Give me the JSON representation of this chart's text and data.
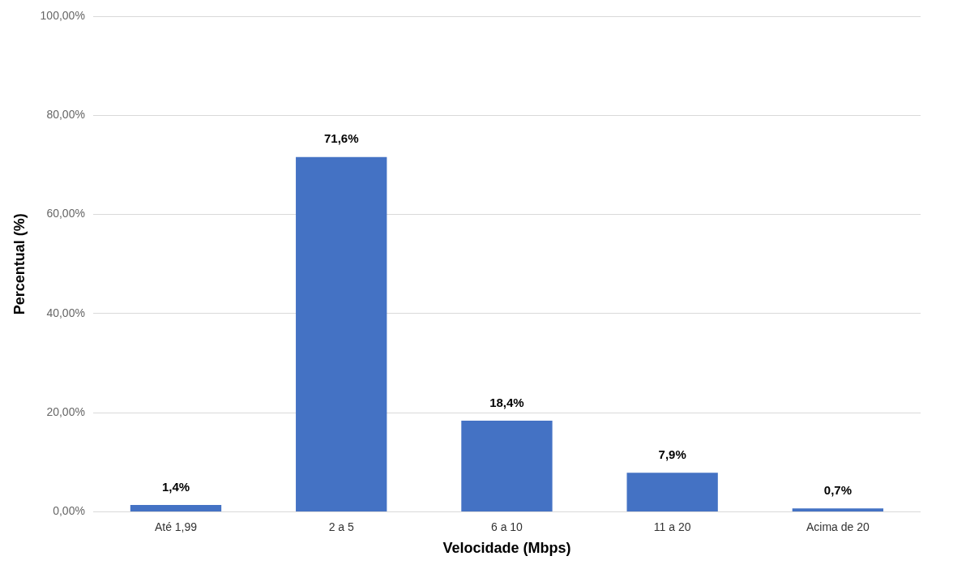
{
  "chart_data": {
    "type": "bar",
    "xlabel": "Velocidade (Mbps)",
    "ylabel": "Percentual (%)",
    "categories": [
      "Até 1,99",
      "2 a 5",
      "6 a 10",
      "11 a 20",
      "Acima de 20"
    ],
    "values": [
      1.4,
      71.6,
      18.4,
      7.9,
      0.7
    ],
    "value_labels": [
      "1,4%",
      "71,6%",
      "18,4%",
      "7,9%",
      "0,7%"
    ],
    "color": "#4472c4",
    "ylim": [
      0,
      100
    ],
    "yticks": [
      {
        "value": 0,
        "label": "0,00%"
      },
      {
        "value": 20,
        "label": "20,00%"
      },
      {
        "value": 40,
        "label": "40,00%"
      },
      {
        "value": 60,
        "label": "60,00%"
      },
      {
        "value": 80,
        "label": "80,00%"
      },
      {
        "value": 100,
        "label": "100,00%"
      }
    ],
    "grid": "y"
  }
}
